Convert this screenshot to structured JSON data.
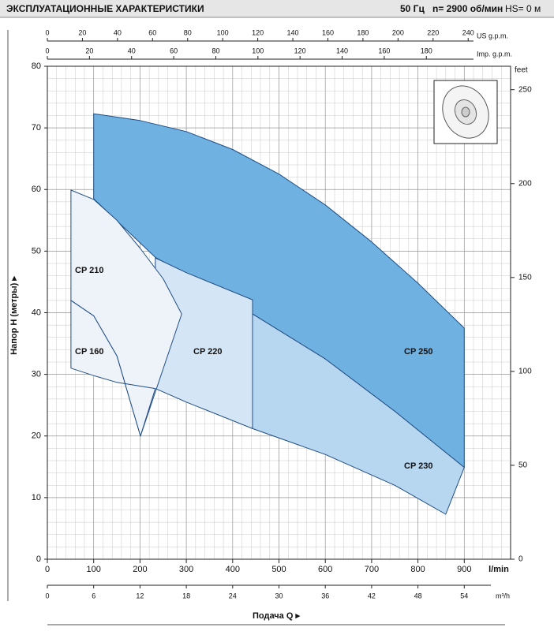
{
  "chart_data": {
    "type": "area",
    "title": "ЭКСПЛУАТАЦИОННЫЕ ХАРАКТЕРИСТИКИ",
    "conditions": [
      "50 Гц",
      "n= 2900 об/мин",
      "HS= 0 м"
    ],
    "xlabel": "l/min",
    "x_title": "Подача Q ▸",
    "ylabel": "Напор H (метры) ▸",
    "xlim": [
      0,
      1000
    ],
    "xticks": [
      0,
      100,
      200,
      300,
      400,
      500,
      600,
      700,
      800,
      900
    ],
    "ylim": [
      0,
      80
    ],
    "yticks": [
      0,
      10,
      20,
      30,
      40,
      50,
      60,
      70,
      80
    ],
    "y2label": "feet",
    "y2lim": [
      0,
      262.47
    ],
    "y2ticks": [
      0,
      50,
      100,
      150,
      200,
      250
    ],
    "extra_x_axes": [
      {
        "label": "US g.p.m.",
        "position": "top",
        "lim": [
          0,
          264.2
        ],
        "ticks": [
          0,
          20,
          40,
          60,
          80,
          100,
          120,
          140,
          160,
          180,
          200,
          220,
          240
        ]
      },
      {
        "label": "Imp. g.p.m.",
        "position": "top",
        "lim": [
          0,
          220
        ],
        "ticks": [
          0,
          20,
          40,
          60,
          80,
          100,
          120,
          140,
          160,
          180
        ]
      },
      {
        "label": "m³/h",
        "position": "bottom",
        "lim": [
          0,
          60
        ],
        "ticks": [
          0,
          6,
          12,
          18,
          24,
          30,
          36,
          42,
          48,
          54
        ]
      }
    ],
    "grid": true,
    "series": [
      {
        "name": "CP 250",
        "color": "#6fb1e0",
        "upper": {
          "x": [
            100,
            200,
            300,
            400,
            500,
            600,
            700,
            800,
            900
          ],
          "values": [
            72.3,
            71.2,
            69.4,
            66.5,
            62.5,
            57.5,
            51.5,
            44.8,
            37.5
          ]
        },
        "lower": {
          "x": [
            100,
            233,
            443,
            600,
            750,
            900
          ],
          "values": [
            58.5,
            49,
            39.8,
            32.5,
            24,
            14.9
          ]
        }
      },
      {
        "name": "CP 230",
        "color": "#b7d6ef",
        "upper": {
          "x": [
            443,
            600,
            750,
            900
          ],
          "values": [
            39.8,
            32.5,
            24,
            14.9
          ]
        },
        "lower": {
          "x": [
            443,
            600,
            750,
            860
          ],
          "values": [
            21.2,
            17,
            12,
            7.3
          ]
        }
      },
      {
        "name": "CP 220",
        "color": "#d4e6f5",
        "upper": {
          "x": [
            233,
            300,
            443
          ],
          "values": [
            48.9,
            46.5,
            42.1
          ]
        },
        "lower": {
          "x": [
            233,
            300,
            443
          ],
          "values": [
            27.7,
            25.5,
            21.2
          ]
        }
      },
      {
        "name": "CP 210",
        "color": "#eef3fa",
        "upper": {
          "x": [
            51,
            100,
            150,
            200,
            250,
            290
          ],
          "values": [
            59.9,
            58.4,
            55,
            50.5,
            45.5,
            39.8
          ]
        },
        "lower": {
          "x": [
            51,
            100,
            150,
            201
          ],
          "values": [
            42,
            39.5,
            33,
            20
          ]
        }
      },
      {
        "name": "CP 160",
        "color": "#eef3fa",
        "upper": {
          "x": [
            51,
            100,
            150,
            201
          ],
          "values": [
            42,
            39.5,
            33,
            20
          ]
        },
        "lower": {
          "x": [
            51,
            100,
            150,
            233
          ],
          "values": [
            31,
            29.8,
            28.7,
            27.7
          ]
        }
      }
    ]
  }
}
